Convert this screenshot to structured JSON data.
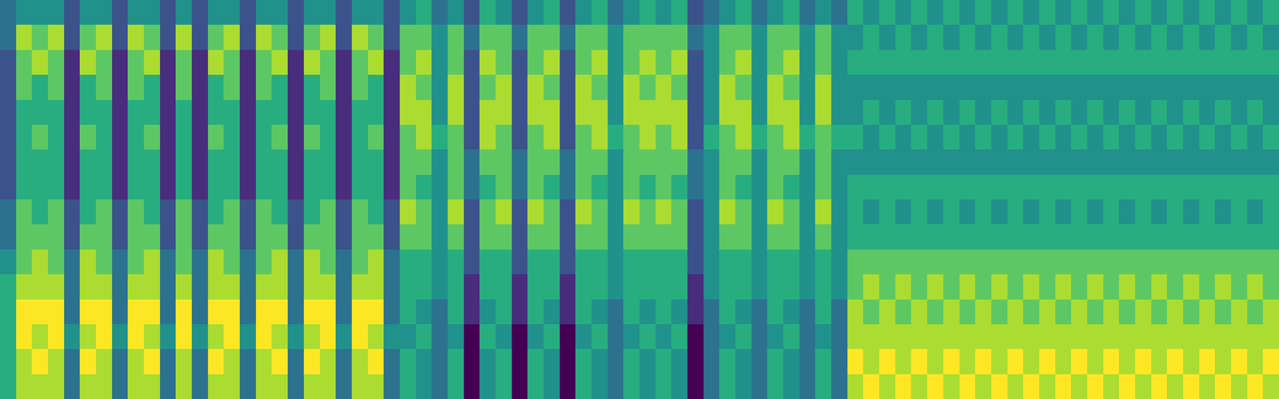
{
  "chart_data": {
    "type": "heatmap",
    "color": "Viridis",
    "zlim": [
      0,
      8
    ],
    "tick_labels": false,
    "grid": false,
    "cells": [
      [
        3,
        4,
        4,
        4,
        2,
        4,
        4,
        2,
        4,
        4,
        2,
        4,
        2,
        4,
        4,
        2,
        4,
        4,
        2,
        4,
        4,
        2,
        4,
        4,
        2,
        4,
        5,
        3,
        4,
        2,
        5,
        4,
        2,
        4,
        5,
        2,
        4,
        5,
        3,
        4,
        5,
        4,
        5,
        2,
        3,
        4,
        5,
        3,
        4,
        5,
        3,
        4,
        3,
        5,
        4,
        5,
        4,
        5,
        4,
        5,
        4,
        5,
        4,
        5,
        4,
        5,
        4,
        5,
        4,
        5,
        4,
        5,
        4,
        5,
        4,
        5,
        4,
        5,
        4,
        5
      ],
      [
        3,
        7,
        6,
        7,
        2,
        6,
        7,
        2,
        7,
        6,
        2,
        7,
        2,
        6,
        7,
        2,
        7,
        6,
        2,
        6,
        7,
        2,
        7,
        6,
        2,
        6,
        6,
        4,
        6,
        3,
        6,
        6,
        3,
        6,
        6,
        3,
        6,
        6,
        4,
        6,
        6,
        6,
        6,
        3,
        4,
        6,
        6,
        4,
        6,
        6,
        4,
        6,
        4,
        4,
        5,
        4,
        5,
        4,
        5,
        4,
        5,
        4,
        5,
        4,
        5,
        4,
        5,
        4,
        5,
        4,
        5,
        4,
        5,
        4,
        5,
        4,
        5,
        4,
        5,
        4
      ],
      [
        2,
        6,
        7,
        6,
        1,
        7,
        6,
        1,
        6,
        7,
        1,
        6,
        1,
        7,
        6,
        1,
        6,
        7,
        1,
        7,
        6,
        1,
        6,
        7,
        1,
        6,
        7,
        4,
        6,
        2,
        7,
        6,
        2,
        6,
        7,
        2,
        6,
        7,
        4,
        6,
        7,
        6,
        7,
        2,
        4,
        6,
        7,
        4,
        6,
        7,
        4,
        6,
        4,
        5,
        5,
        5,
        5,
        5,
        5,
        5,
        5,
        5,
        5,
        5,
        5,
        5,
        5,
        5,
        5,
        5,
        5,
        5,
        5,
        5,
        5,
        5,
        5,
        5,
        5,
        5
      ],
      [
        2,
        6,
        5,
        6,
        1,
        5,
        6,
        1,
        6,
        5,
        1,
        6,
        1,
        5,
        6,
        1,
        6,
        5,
        1,
        5,
        6,
        1,
        6,
        5,
        1,
        7,
        6,
        4,
        7,
        2,
        6,
        7,
        2,
        7,
        6,
        2,
        7,
        6,
        4,
        7,
        6,
        7,
        6,
        2,
        4,
        7,
        6,
        4,
        7,
        6,
        4,
        7,
        4,
        4,
        4,
        4,
        4,
        4,
        4,
        4,
        4,
        4,
        4,
        4,
        4,
        4,
        4,
        4,
        4,
        4,
        4,
        4,
        4,
        4,
        4,
        4,
        4,
        4,
        4,
        4
      ],
      [
        2,
        5,
        5,
        5,
        1,
        5,
        5,
        1,
        5,
        5,
        1,
        5,
        1,
        5,
        5,
        1,
        5,
        5,
        1,
        5,
        5,
        1,
        5,
        5,
        1,
        7,
        7,
        4,
        7,
        2,
        7,
        7,
        2,
        7,
        7,
        2,
        7,
        7,
        4,
        7,
        7,
        7,
        7,
        2,
        4,
        7,
        7,
        4,
        7,
        7,
        4,
        7,
        4,
        4,
        5,
        4,
        5,
        4,
        5,
        4,
        5,
        4,
        5,
        4,
        5,
        4,
        5,
        4,
        5,
        4,
        5,
        4,
        5,
        4,
        5,
        4,
        5,
        4,
        5,
        4
      ],
      [
        2,
        5,
        6,
        5,
        1,
        6,
        5,
        1,
        5,
        6,
        1,
        5,
        1,
        6,
        5,
        1,
        5,
        6,
        1,
        6,
        5,
        1,
        5,
        6,
        1,
        6,
        7,
        5,
        6,
        2,
        7,
        6,
        2,
        6,
        7,
        2,
        6,
        7,
        5,
        6,
        7,
        6,
        7,
        2,
        5,
        6,
        7,
        5,
        6,
        7,
        5,
        6,
        5,
        5,
        4,
        5,
        4,
        5,
        4,
        5,
        4,
        5,
        4,
        5,
        4,
        5,
        4,
        5,
        4,
        5,
        4,
        5,
        4,
        5,
        4,
        5,
        4,
        5,
        4,
        5
      ],
      [
        2,
        5,
        5,
        5,
        1,
        5,
        5,
        1,
        5,
        5,
        1,
        5,
        1,
        5,
        5,
        1,
        5,
        5,
        1,
        5,
        5,
        1,
        5,
        5,
        1,
        6,
        6,
        4,
        6,
        3,
        6,
        6,
        3,
        6,
        6,
        3,
        6,
        6,
        4,
        6,
        6,
        6,
        6,
        3,
        4,
        6,
        6,
        4,
        6,
        6,
        4,
        6,
        4,
        4,
        4,
        4,
        4,
        4,
        4,
        4,
        4,
        4,
        4,
        4,
        4,
        4,
        4,
        4,
        4,
        4,
        4,
        4,
        4,
        4,
        4,
        4,
        4,
        4,
        4,
        4
      ],
      [
        2,
        5,
        5,
        5,
        1,
        5,
        5,
        1,
        5,
        5,
        1,
        5,
        1,
        5,
        5,
        1,
        5,
        5,
        1,
        5,
        5,
        1,
        5,
        5,
        1,
        6,
        5,
        4,
        6,
        3,
        5,
        6,
        3,
        6,
        5,
        3,
        6,
        5,
        4,
        6,
        5,
        6,
        5,
        3,
        4,
        6,
        5,
        4,
        6,
        5,
        4,
        6,
        4,
        5,
        5,
        5,
        5,
        5,
        5,
        5,
        5,
        5,
        5,
        5,
        5,
        5,
        5,
        5,
        5,
        5,
        5,
        5,
        5,
        5,
        5,
        5,
        5,
        5,
        5,
        5
      ],
      [
        3,
        6,
        5,
        6,
        2,
        5,
        6,
        2,
        6,
        5,
        2,
        6,
        2,
        5,
        6,
        2,
        6,
        5,
        2,
        5,
        6,
        2,
        6,
        5,
        2,
        7,
        6,
        4,
        7,
        2,
        6,
        7,
        2,
        7,
        6,
        2,
        7,
        6,
        4,
        7,
        6,
        7,
        6,
        2,
        4,
        7,
        6,
        4,
        7,
        6,
        4,
        7,
        4,
        5,
        4,
        5,
        4,
        5,
        4,
        5,
        4,
        5,
        4,
        5,
        4,
        5,
        4,
        5,
        4,
        5,
        4,
        5,
        4,
        5,
        4,
        5,
        4,
        5,
        4,
        5
      ],
      [
        3,
        6,
        6,
        6,
        2,
        6,
        6,
        2,
        6,
        6,
        2,
        6,
        2,
        6,
        6,
        2,
        6,
        6,
        2,
        6,
        6,
        2,
        6,
        6,
        2,
        6,
        6,
        4,
        6,
        2,
        6,
        6,
        2,
        6,
        6,
        2,
        6,
        6,
        4,
        6,
        6,
        6,
        6,
        2,
        4,
        6,
        6,
        4,
        6,
        6,
        4,
        6,
        4,
        5,
        5,
        5,
        5,
        5,
        5,
        5,
        5,
        5,
        5,
        5,
        5,
        5,
        5,
        5,
        5,
        5,
        5,
        5,
        5,
        5,
        5,
        5,
        5,
        5,
        5,
        5
      ],
      [
        4,
        6,
        7,
        6,
        3,
        7,
        6,
        3,
        6,
        7,
        3,
        6,
        3,
        7,
        6,
        3,
        6,
        7,
        3,
        7,
        6,
        3,
        6,
        7,
        3,
        5,
        5,
        4,
        5,
        2,
        5,
        5,
        2,
        5,
        5,
        2,
        5,
        5,
        4,
        5,
        5,
        5,
        5,
        2,
        4,
        5,
        5,
        4,
        5,
        5,
        4,
        5,
        4,
        6,
        6,
        6,
        6,
        6,
        6,
        6,
        6,
        6,
        6,
        6,
        6,
        6,
        6,
        6,
        6,
        6,
        6,
        6,
        6,
        6,
        6,
        6,
        6,
        6,
        6,
        6
      ],
      [
        5,
        7,
        7,
        7,
        3,
        7,
        7,
        3,
        7,
        7,
        3,
        7,
        3,
        7,
        7,
        3,
        7,
        7,
        3,
        7,
        7,
        3,
        7,
        7,
        3,
        5,
        5,
        4,
        5,
        1,
        5,
        5,
        1,
        5,
        5,
        1,
        5,
        5,
        4,
        5,
        5,
        5,
        5,
        1,
        4,
        5,
        5,
        4,
        5,
        5,
        4,
        5,
        4,
        6,
        7,
        6,
        7,
        6,
        7,
        6,
        7,
        6,
        7,
        6,
        7,
        6,
        7,
        6,
        7,
        6,
        7,
        6,
        7,
        6,
        7,
        6,
        7,
        6,
        7,
        6
      ],
      [
        5,
        8,
        8,
        8,
        3,
        8,
        8,
        3,
        8,
        8,
        3,
        8,
        3,
        8,
        8,
        3,
        8,
        8,
        3,
        8,
        8,
        3,
        8,
        8,
        3,
        5,
        4,
        3,
        5,
        1,
        4,
        5,
        1,
        5,
        4,
        1,
        5,
        4,
        3,
        5,
        4,
        5,
        4,
        1,
        3,
        5,
        4,
        3,
        5,
        4,
        3,
        5,
        3,
        7,
        6,
        7,
        6,
        7,
        6,
        7,
        6,
        7,
        6,
        7,
        6,
        7,
        6,
        7,
        6,
        7,
        6,
        7,
        6,
        7,
        6,
        7,
        6,
        7,
        6,
        7
      ],
      [
        5,
        8,
        7,
        8,
        4,
        7,
        8,
        4,
        8,
        7,
        4,
        8,
        4,
        7,
        8,
        4,
        8,
        7,
        4,
        7,
        8,
        4,
        8,
        7,
        4,
        4,
        5,
        3,
        4,
        0,
        5,
        4,
        0,
        4,
        5,
        0,
        4,
        5,
        3,
        4,
        5,
        4,
        5,
        0,
        3,
        4,
        5,
        3,
        4,
        5,
        3,
        4,
        3,
        7,
        7,
        7,
        7,
        7,
        7,
        7,
        7,
        7,
        7,
        7,
        7,
        7,
        7,
        7,
        7,
        7,
        7,
        7,
        7,
        7,
        7,
        7,
        7,
        7,
        7,
        7
      ],
      [
        5,
        7,
        8,
        7,
        3,
        8,
        7,
        3,
        7,
        8,
        3,
        7,
        3,
        8,
        7,
        3,
        7,
        8,
        3,
        8,
        7,
        3,
        7,
        8,
        3,
        5,
        4,
        3,
        5,
        0,
        4,
        5,
        0,
        5,
        4,
        0,
        5,
        4,
        3,
        5,
        4,
        5,
        4,
        0,
        3,
        5,
        4,
        3,
        5,
        4,
        3,
        5,
        3,
        8,
        7,
        8,
        7,
        8,
        7,
        8,
        7,
        8,
        7,
        8,
        7,
        8,
        7,
        8,
        7,
        8,
        7,
        8,
        7,
        8,
        7,
        8,
        7,
        8,
        7,
        8
      ],
      [
        5,
        7,
        7,
        7,
        3,
        7,
        7,
        3,
        7,
        7,
        3,
        7,
        3,
        7,
        7,
        3,
        7,
        7,
        3,
        7,
        7,
        3,
        7,
        7,
        3,
        5,
        4,
        3,
        5,
        0,
        4,
        5,
        0,
        5,
        4,
        0,
        5,
        4,
        3,
        5,
        4,
        5,
        4,
        0,
        3,
        5,
        4,
        3,
        5,
        4,
        3,
        5,
        3,
        7,
        8,
        7,
        8,
        7,
        8,
        7,
        8,
        7,
        8,
        7,
        8,
        7,
        8,
        7,
        8,
        7,
        8,
        7,
        8,
        7,
        8,
        7,
        8,
        7,
        8,
        7
      ]
    ]
  }
}
